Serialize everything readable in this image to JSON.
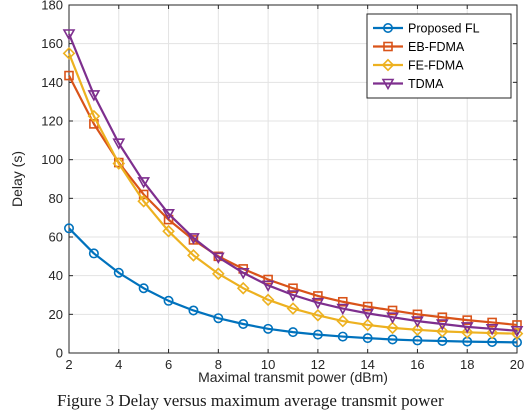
{
  "chart_data": {
    "type": "line",
    "title": "",
    "xlabel": "Maximal transmit power (dBm)",
    "ylabel": "Delay (s)",
    "xlim": [
      2,
      20
    ],
    "ylim": [
      0,
      180
    ],
    "xticks": [
      2,
      4,
      6,
      8,
      10,
      12,
      14,
      16,
      18,
      20
    ],
    "yticks": [
      0,
      20,
      40,
      60,
      80,
      100,
      120,
      140,
      160,
      180
    ],
    "grid": true,
    "legend_position": "top-right",
    "x": [
      2,
      3,
      4,
      5,
      6,
      7,
      8,
      9,
      10,
      11,
      12,
      13,
      14,
      15,
      16,
      17,
      18,
      19,
      20
    ],
    "series": [
      {
        "name": "Proposed FL",
        "color": "#0072BD",
        "marker": "circle",
        "values": [
          64.5,
          51.5,
          41.5,
          33.5,
          27.0,
          22.0,
          18.0,
          15.0,
          12.5,
          10.8,
          9.5,
          8.5,
          7.7,
          7.0,
          6.5,
          6.2,
          5.9,
          5.7,
          5.5
        ]
      },
      {
        "name": "EB-FDMA",
        "color": "#D95319",
        "marker": "square",
        "values": [
          143.5,
          118.5,
          98.5,
          82.0,
          69.0,
          58.5,
          50.0,
          43.5,
          38.0,
          33.5,
          29.5,
          26.5,
          24.0,
          22.0,
          20.0,
          18.5,
          17.0,
          15.8,
          14.5
        ]
      },
      {
        "name": "FE-FDMA",
        "color": "#EDB120",
        "marker": "diamond",
        "values": [
          155.0,
          122.5,
          98.0,
          78.5,
          63.0,
          50.5,
          41.0,
          33.5,
          27.5,
          23.0,
          19.5,
          16.5,
          14.5,
          13.0,
          12.0,
          11.2,
          10.7,
          10.3,
          10.0
        ]
      },
      {
        "name": "TDMA",
        "color": "#7E2F8E",
        "marker": "triangle-down",
        "values": [
          165.0,
          133.5,
          108.5,
          88.5,
          72.0,
          59.5,
          49.5,
          41.5,
          35.0,
          30.0,
          26.0,
          23.0,
          20.5,
          18.5,
          16.5,
          15.0,
          13.5,
          12.5,
          11.5
        ]
      }
    ]
  },
  "caption": {
    "text": "Figure 3 Delay versus maximum average transmit power"
  }
}
